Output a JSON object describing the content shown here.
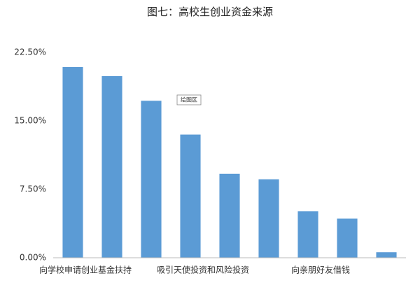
{
  "chart_data": {
    "type": "bar",
    "title": "图七：高校生创业资金来源",
    "categories": [
      "向学校申请创业基金扶持",
      null,
      null,
      "吸引天使投资和风险投资",
      null,
      null,
      "向亲朋好友借钱",
      null,
      null
    ],
    "values": [
      20.9,
      19.9,
      17.2,
      13.5,
      9.2,
      8.6,
      5.1,
      4.3,
      0.6
    ],
    "color": "#5b9bd5",
    "ylim": [
      0,
      22.5
    ],
    "yticks": [
      {
        "value": 0,
        "label": "0.00%"
      },
      {
        "value": 7.5,
        "label": "7.50%"
      },
      {
        "value": 15,
        "label": "15.00%"
      },
      {
        "value": 22.5,
        "label": "22.50%"
      }
    ],
    "grid": false,
    "annotation": "绘图区"
  }
}
